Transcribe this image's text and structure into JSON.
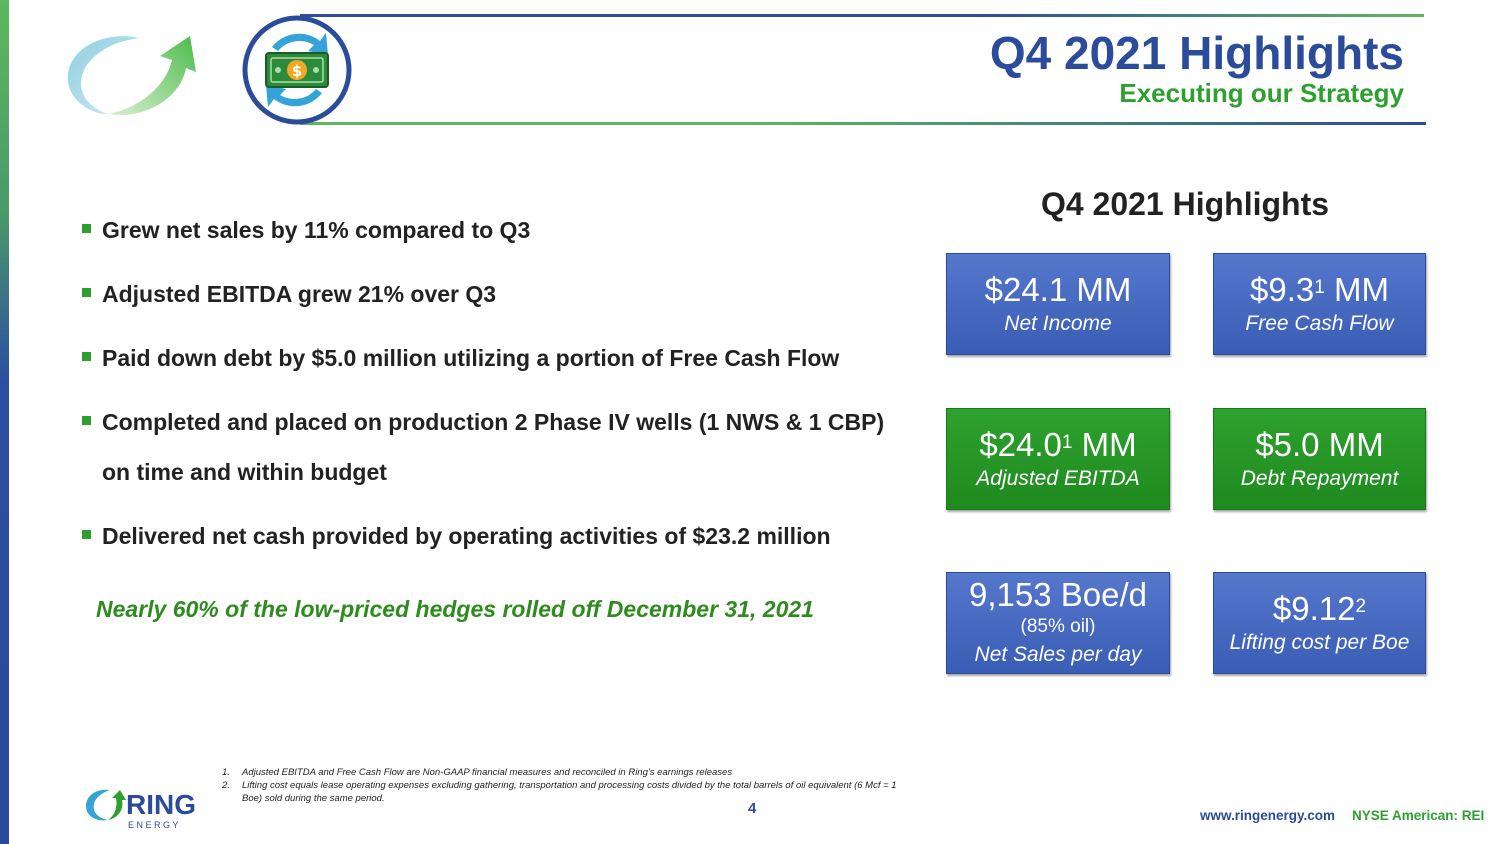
{
  "header": {
    "title": "Q4 2021 Highlights",
    "subtitle": "Executing our Strategy"
  },
  "bullets": [
    "Grew net sales by 11% compared to Q3",
    "Adjusted EBITDA grew 21% over Q3",
    "Paid down debt by $5.0 million utilizing a portion of Free Cash Flow",
    "Completed and placed on production 2 Phase IV wells (1 NWS & 1 CBP) on time and within budget",
    "Delivered net cash provided by operating activities of $23.2 million"
  ],
  "callout": "Nearly 60% of the low-priced hedges rolled off December 31, 2021",
  "highlights": {
    "title": "Q4 2021 Highlights",
    "net_income": {
      "value": "$24.1 MM",
      "label": "Net Income"
    },
    "free_cash_flow": {
      "value_main": "$9.3",
      "value_sup": "1",
      "value_unit": " MM",
      "label": "Free Cash Flow"
    },
    "adjusted_ebitda": {
      "value_main": "$24.0",
      "value_sup": "1",
      "value_unit": " MM",
      "label": "Adjusted EBITDA"
    },
    "debt_repayment": {
      "value": "$5.0 MM",
      "label": "Debt Repayment"
    },
    "net_sales": {
      "value": "9,153 Boe/d",
      "sub": "(85% oil)",
      "label": "Net Sales per day"
    },
    "lifting_cost": {
      "value_main": "$9.12",
      "value_sup": "2",
      "label": "Lifting cost per Boe"
    }
  },
  "footnotes": [
    {
      "num": "1.",
      "text": "Adjusted EBITDA and Free Cash Flow are Non-GAAP financial measures and reconciled in Ring's earnings releases"
    },
    {
      "num": "2.",
      "text": "Lifting cost equals lease operating expenses excluding  gathering, transportation and processing costs divided by the total barrels of oil equivalent (6 Mcf = 1 Boe) sold during the same period."
    }
  ],
  "footer": {
    "page_number": "4",
    "website": "www.ringenergy.com",
    "ticker": "NYSE American: REI",
    "logo_text": "RING",
    "logo_subtext": "E N E R G Y"
  },
  "colors": {
    "brand_blue": "#2b4b9b",
    "brand_green": "#2ea02e"
  }
}
